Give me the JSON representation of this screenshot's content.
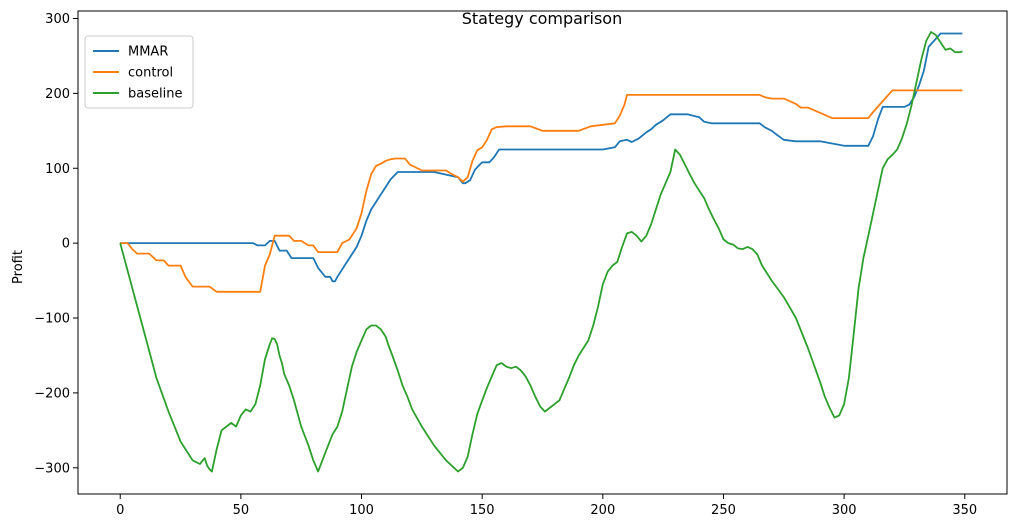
{
  "chart_data": {
    "type": "line",
    "title": "Stategy comparison",
    "xlabel": "",
    "ylabel": "Profit",
    "xlim": [
      -17.5,
      367.5
    ],
    "ylim": [
      -335,
      310
    ],
    "xticks": [
      0,
      50,
      100,
      150,
      200,
      250,
      300,
      350
    ],
    "yticks": [
      -300,
      -200,
      -100,
      0,
      100,
      200,
      300
    ],
    "xtick_labels": [
      "0",
      "50",
      "100",
      "150",
      "200",
      "250",
      "300",
      "350"
    ],
    "ytick_labels": [
      "−300",
      "−200",
      "−100",
      "0",
      "100",
      "200",
      "300"
    ],
    "grid": false,
    "legend_position": "top-left",
    "series": [
      {
        "name": "MMAR",
        "color": "#1f77b4",
        "x": [
          0,
          55,
          57,
          60,
          62,
          64,
          66,
          69,
          71,
          80,
          82,
          85,
          87,
          88,
          89,
          90,
          92,
          94,
          96,
          98,
          100,
          102,
          104,
          106,
          108,
          110,
          112,
          115,
          120,
          130,
          140,
          142,
          143,
          145,
          147,
          149,
          150,
          153,
          155,
          157,
          160,
          165,
          170,
          180,
          200,
          205,
          207,
          210,
          212,
          215,
          218,
          220,
          222,
          225,
          228,
          230,
          235,
          240,
          242,
          245,
          250,
          260,
          265,
          267,
          270,
          272,
          275,
          280,
          290,
          295,
          300,
          305,
          310,
          312,
          314,
          316,
          320,
          325,
          327,
          329,
          331,
          333,
          335,
          340,
          349
        ],
        "y": [
          0,
          0,
          -3,
          -3,
          3,
          3,
          -10,
          -10,
          -20,
          -20,
          -33,
          -45,
          -45,
          -51,
          -51,
          -45,
          -35,
          -25,
          -15,
          -5,
          10,
          30,
          45,
          55,
          65,
          75,
          85,
          95,
          95,
          95,
          88,
          80,
          80,
          84,
          98,
          105,
          108,
          108,
          115,
          125,
          125,
          125,
          125,
          125,
          125,
          128,
          136,
          138,
          135,
          140,
          148,
          152,
          158,
          164,
          172,
          172,
          172,
          168,
          162,
          160,
          160,
          160,
          160,
          155,
          150,
          145,
          138,
          136,
          136,
          133,
          130,
          130,
          130,
          143,
          165,
          182,
          182,
          182,
          185,
          195,
          210,
          230,
          262,
          280,
          280
        ]
      },
      {
        "name": "control",
        "color": "#ff7f0e",
        "x": [
          0,
          3,
          5,
          7,
          10,
          12,
          15,
          18,
          20,
          23,
          25,
          27,
          30,
          35,
          37,
          40,
          45,
          50,
          55,
          58,
          60,
          62,
          64,
          66,
          70,
          72,
          75,
          78,
          80,
          82,
          85,
          90,
          92,
          95,
          98,
          100,
          102,
          104,
          106,
          108,
          110,
          112,
          114,
          118,
          120,
          125,
          130,
          135,
          137,
          140,
          142,
          144,
          146,
          148,
          150,
          152,
          154,
          156,
          160,
          170,
          175,
          180,
          190,
          195,
          200,
          205,
          207,
          209,
          210,
          220,
          230,
          240,
          250,
          260,
          265,
          267,
          270,
          275,
          280,
          282,
          285,
          290,
          295,
          300,
          305,
          310,
          312,
          315,
          320,
          330,
          349
        ],
        "y": [
          0,
          0,
          -8,
          -14,
          -14,
          -14,
          -23,
          -23,
          -30,
          -30,
          -30,
          -45,
          -58,
          -58,
          -58,
          -65,
          -65,
          -65,
          -65,
          -65,
          -30,
          -15,
          10,
          10,
          10,
          3,
          3,
          -3,
          -3,
          -12,
          -12,
          -12,
          0,
          5,
          20,
          40,
          70,
          92,
          103,
          106,
          110,
          112,
          113,
          113,
          105,
          97,
          97,
          97,
          93,
          88,
          82,
          88,
          110,
          124,
          128,
          138,
          152,
          155,
          156,
          156,
          150,
          150,
          150,
          156,
          158,
          160,
          170,
          185,
          198,
          198,
          198,
          198,
          198,
          198,
          198,
          195,
          193,
          193,
          186,
          181,
          181,
          174,
          167,
          167,
          167,
          167,
          175,
          186,
          204,
          204,
          204
        ]
      },
      {
        "name": "baseline",
        "color": "#2ca02c",
        "x": [
          0,
          5,
          10,
          15,
          20,
          25,
          30,
          33,
          35,
          36,
          37,
          38,
          40,
          42,
          44,
          46,
          48,
          50,
          52,
          54,
          56,
          58,
          60,
          62,
          63,
          64,
          65,
          66,
          67,
          68,
          70,
          72,
          75,
          78,
          80,
          82,
          85,
          88,
          90,
          92,
          94,
          96,
          98,
          100,
          102,
          104,
          106,
          108,
          110,
          111,
          113,
          115,
          117,
          119,
          121,
          125,
          130,
          135,
          140,
          142,
          144,
          146,
          148,
          150,
          152,
          154,
          156,
          158,
          160,
          162,
          164,
          166,
          168,
          170,
          172,
          174,
          176,
          178,
          180,
          182,
          184,
          186,
          188,
          190,
          192,
          194,
          196,
          198,
          200,
          202,
          204,
          206,
          208,
          210,
          212,
          214,
          216,
          218,
          220,
          222,
          224,
          226,
          228,
          230,
          232,
          234,
          236,
          238,
          240,
          242,
          244,
          246,
          248,
          250,
          252,
          254,
          256,
          258,
          260,
          262,
          264,
          266,
          270,
          275,
          280,
          285,
          290,
          292,
          294,
          296,
          298,
          300,
          302,
          304,
          306,
          308,
          310,
          312,
          314,
          316,
          318,
          320,
          322,
          324,
          326,
          328,
          330,
          332,
          334,
          336,
          338,
          340,
          342,
          344,
          346,
          348,
          349
        ],
        "y": [
          0,
          -60,
          -120,
          -180,
          -225,
          -265,
          -290,
          -295,
          -287,
          -297,
          -302,
          -305,
          -275,
          -250,
          -245,
          -240,
          -245,
          -230,
          -222,
          -225,
          -215,
          -190,
          -155,
          -135,
          -127,
          -128,
          -135,
          -150,
          -160,
          -175,
          -190,
          -210,
          -245,
          -270,
          -290,
          -305,
          -280,
          -255,
          -245,
          -225,
          -195,
          -165,
          -145,
          -130,
          -115,
          -110,
          -110,
          -115,
          -125,
          -135,
          -152,
          -170,
          -190,
          -205,
          -222,
          -245,
          -270,
          -290,
          -305,
          -300,
          -285,
          -255,
          -228,
          -210,
          -193,
          -178,
          -163,
          -160,
          -165,
          -167,
          -165,
          -170,
          -178,
          -190,
          -205,
          -218,
          -225,
          -220,
          -215,
          -210,
          -195,
          -180,
          -163,
          -150,
          -140,
          -130,
          -110,
          -85,
          -55,
          -38,
          -30,
          -25,
          -5,
          13,
          15,
          10,
          2,
          10,
          25,
          45,
          65,
          80,
          95,
          125,
          118,
          105,
          92,
          80,
          70,
          60,
          45,
          32,
          20,
          5,
          0,
          -2,
          -7,
          -8,
          -5,
          -8,
          -15,
          -30,
          -50,
          -72,
          -100,
          -140,
          -185,
          -205,
          -220,
          -233,
          -230,
          -215,
          -180,
          -120,
          -60,
          -20,
          10,
          40,
          70,
          100,
          112,
          118,
          125,
          140,
          160,
          185,
          215,
          245,
          270,
          282,
          278,
          268,
          258,
          260,
          255,
          255,
          256
        ]
      }
    ]
  }
}
